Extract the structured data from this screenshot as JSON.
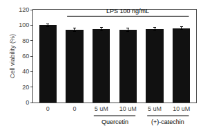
{
  "chart_data": {
    "type": "bar",
    "categories": [
      "0",
      "0",
      "5 uM",
      "10 uM",
      "5 uM",
      "10 uM"
    ],
    "values": [
      100,
      94,
      95,
      94,
      95,
      96
    ],
    "errors": [
      1.5,
      2.0,
      2.5,
      2.0,
      2.0,
      1.8
    ],
    "color": "#111111",
    "ylim": [
      0,
      120
    ],
    "yticks": [
      0,
      20,
      40,
      60,
      80,
      100,
      120
    ],
    "ylabel": "Cell viability (%)",
    "grid": false,
    "annotations": [
      {
        "text": "LPS 100 ng/mL",
        "span": [
          1,
          5
        ]
      }
    ],
    "groups": [
      {
        "text": "Quercetin",
        "span": [
          2,
          3
        ]
      },
      {
        "text": "(+)-catechin",
        "span": [
          4,
          5
        ]
      }
    ]
  }
}
